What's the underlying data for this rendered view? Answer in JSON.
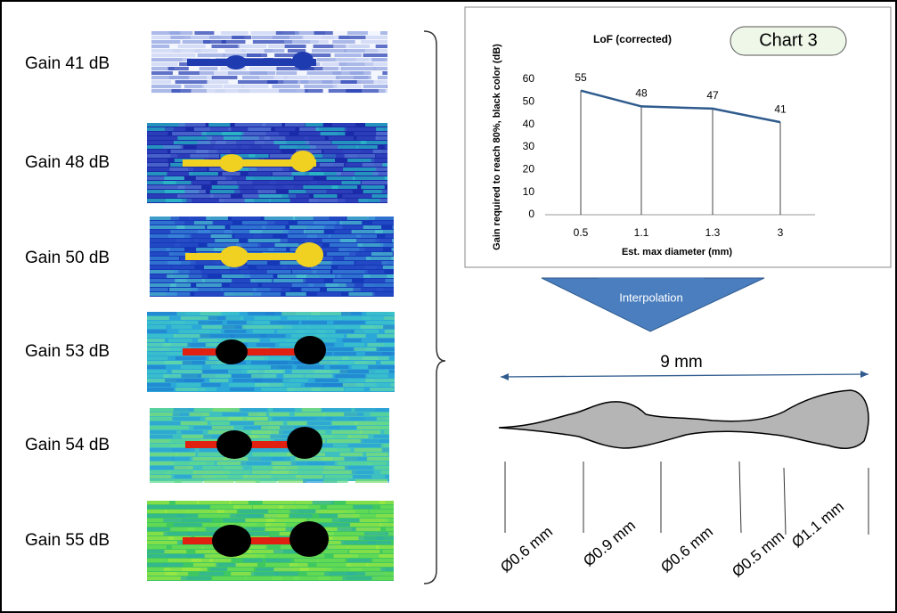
{
  "scans": [
    {
      "label": "Gain 41 dB"
    },
    {
      "label": "Gain 48 dB"
    },
    {
      "label": "Gain 50 dB"
    },
    {
      "label": "Gain 53 dB"
    },
    {
      "label": "Gain 54 dB"
    },
    {
      "label": "Gain 55 dB"
    }
  ],
  "chart": {
    "type": "line",
    "title": "LoF (corrected)",
    "badge": "Chart 3",
    "y_label": "Gain required to reach 80%, black color (dB)",
    "x_label": "Est. max diameter (mm)",
    "categories": [
      "0.5",
      "1.1",
      "1.3",
      "3"
    ],
    "values": [
      55,
      48,
      47,
      41
    ],
    "ylim": [
      0,
      60
    ],
    "yticks": [
      0,
      10,
      20,
      30,
      40,
      50,
      60
    ],
    "color": "#2f5b8e"
  },
  "arrow_label": "Interpolation",
  "length_label": "9 mm",
  "diameters": [
    "Ø0.6 mm",
    "Ø0.9 mm",
    "Ø0.6 mm",
    "Ø0.5 mm",
    "Ø1.1 mm"
  ]
}
